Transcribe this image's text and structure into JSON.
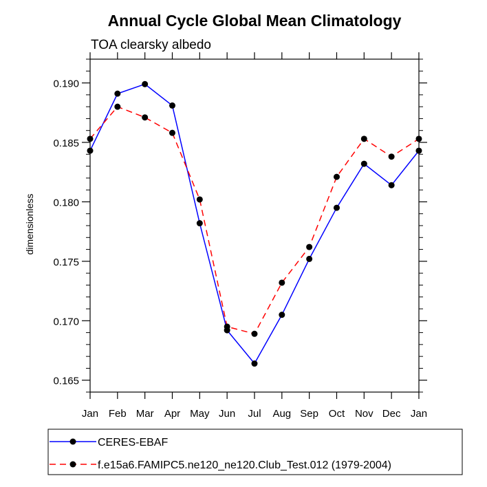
{
  "chart_data": {
    "type": "line",
    "title": "Annual Cycle Global Mean Climatology",
    "subtitle": "TOA clearsky albedo",
    "xlabel": "",
    "ylabel": "dimensionless",
    "categories": [
      "Jan",
      "Feb",
      "Mar",
      "Apr",
      "May",
      "Jun",
      "Jul",
      "Aug",
      "Sep",
      "Oct",
      "Nov",
      "Dec",
      "Jan"
    ],
    "ylim": [
      0.164,
      0.192
    ],
    "yticks": [
      "0.165",
      "0.170",
      "0.175",
      "0.180",
      "0.185",
      "0.190"
    ],
    "grid": false,
    "legend_position": "bottom",
    "series": [
      {
        "name": "CERES-EBAF",
        "color": "#0000ff",
        "line_style": "solid",
        "marker": "filled-circle",
        "values": [
          0.1843,
          0.1891,
          0.1899,
          0.1881,
          0.1782,
          0.1692,
          0.1664,
          0.1705,
          0.1752,
          0.1795,
          0.1832,
          0.1814,
          0.1843
        ]
      },
      {
        "name": "f.e15a6.FAMIPC5.ne120_ne120.Club_Test.012 (1979-2004)",
        "color": "#ff0000",
        "line_style": "dashed",
        "marker": "filled-circle",
        "values": [
          0.1853,
          0.188,
          0.1871,
          0.1858,
          0.1802,
          0.1695,
          0.1689,
          0.1732,
          0.1762,
          0.1821,
          0.1853,
          0.1838,
          0.1853
        ]
      }
    ]
  }
}
